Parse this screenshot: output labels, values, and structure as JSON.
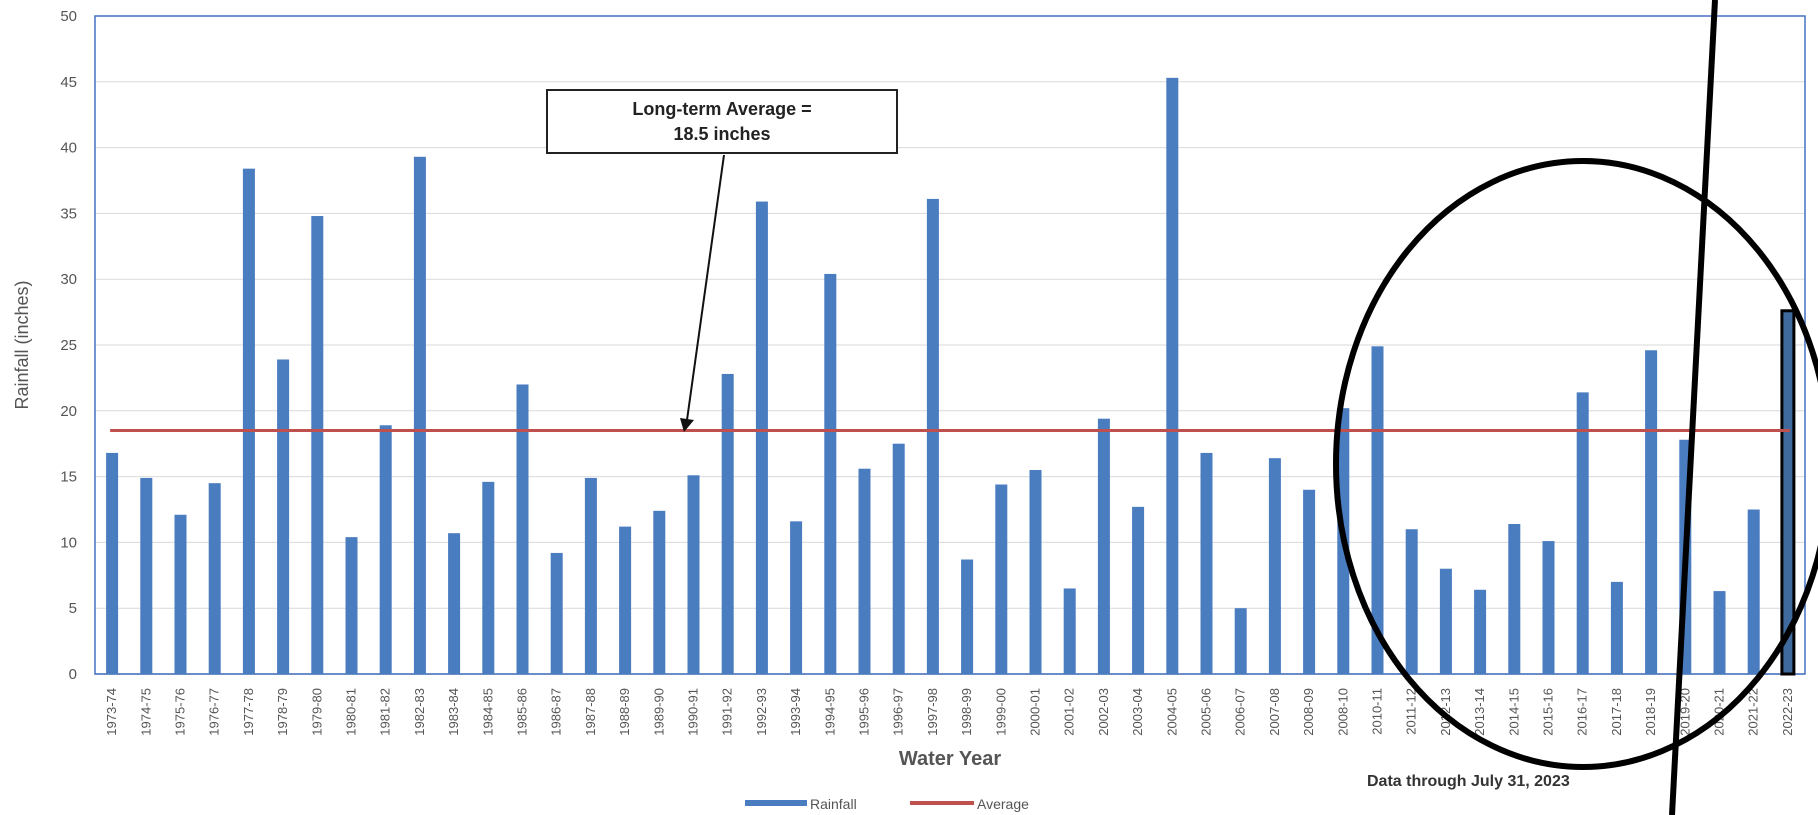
{
  "chart_data": {
    "type": "bar",
    "xlabel": "Water Year",
    "ylabel": "Rainfall (inches)",
    "ylim": [
      0,
      50
    ],
    "yticks": [
      0,
      5,
      10,
      15,
      20,
      25,
      30,
      35,
      40,
      45,
      50
    ],
    "grid": true,
    "legend_position": "bottom",
    "categories": [
      "1973-74",
      "1974-75",
      "1975-76",
      "1976-77",
      "1977-78",
      "1978-79",
      "1979-80",
      "1980-81",
      "1981-82",
      "1982-83",
      "1983-84",
      "1984-85",
      "1985-86",
      "1986-87",
      "1987-88",
      "1988-89",
      "1989-90",
      "1990-91",
      "1991-92",
      "1992-93",
      "1993-94",
      "1994-95",
      "1995-96",
      "1996-97",
      "1997-98",
      "1998-99",
      "1999-00",
      "2000-01",
      "2001-02",
      "2002-03",
      "2003-04",
      "2004-05",
      "2005-06",
      "2006-07",
      "2007-08",
      "2008-09",
      "2008-10",
      "2010-11",
      "2011-12",
      "2012-13",
      "2013-14",
      "2014-15",
      "2015-16",
      "2016-17",
      "2017-18",
      "2018-19",
      "2019-20",
      "2020-21",
      "2021-22",
      "2022-23"
    ],
    "series": [
      {
        "name": "Rainfall",
        "color": "#4a7cc0",
        "values": [
          16.8,
          14.9,
          12.1,
          14.5,
          38.4,
          23.9,
          34.8,
          10.4,
          18.9,
          39.3,
          10.7,
          14.6,
          22.0,
          9.2,
          14.9,
          11.2,
          12.4,
          15.1,
          22.8,
          35.9,
          11.6,
          30.4,
          15.6,
          17.5,
          36.1,
          8.7,
          14.4,
          15.5,
          6.5,
          19.4,
          12.7,
          45.3,
          16.8,
          5.0,
          16.4,
          14.0,
          20.2,
          24.9,
          11.0,
          8.0,
          6.4,
          11.4,
          10.1,
          21.4,
          7.0,
          24.6,
          17.8,
          6.3,
          12.5,
          27.6
        ]
      },
      {
        "name": "Average",
        "color": "#c0504d",
        "type": "line",
        "value": 18.5
      }
    ],
    "highlight_last_bar_color": "#3f6a9e",
    "annotation": {
      "line1": "Long-term Average =",
      "line2": "18.5 inches"
    },
    "note": "Data through July 31, 2023"
  }
}
